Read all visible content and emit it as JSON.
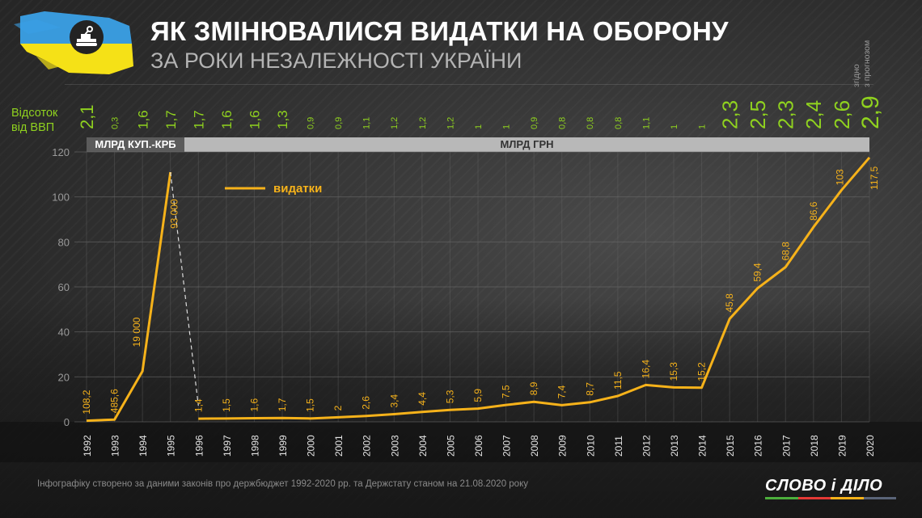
{
  "header": {
    "title": "ЯК ЗМІНЮВАЛИСЯ ВИДАТКИ НА ОБОРОНУ",
    "subtitle": "ЗА РОКИ НЕЗАЛЕЖНОСТІ УКРАЇНИ",
    "logo_icon": "tank-icon"
  },
  "gdp_row": {
    "label_line1": "Відсоток",
    "label_line2": "від ВВП",
    "forecast_note_line1": "згідно",
    "forecast_note_line2": "з прогнозом"
  },
  "unit_bands": [
    {
      "label": "МЛРД КУП.-КРБ",
      "from": "1992",
      "to": "1995"
    },
    {
      "label": "МЛРД ГРН",
      "from": "1996",
      "to": "2020"
    }
  ],
  "legend": {
    "label": "видатки"
  },
  "footnote": "Інфографіку створено за даними законів про держбюджет 1992-2020 рр. та Держстату станом на 21.08.2020 року",
  "brand": {
    "name": "СЛОВО і ДІЛО",
    "stripe_colors": [
      "#4caf3c",
      "#e53935",
      "#f6b21a",
      "#5a6478"
    ]
  },
  "colors": {
    "line": "#f6b21a",
    "gdp_text": "#8fd11f",
    "axis_text": "#9a9a9a",
    "grid": "#6a6a6a",
    "connector": "#dddddd"
  },
  "chart_data": {
    "type": "line",
    "title": "Як змінювалися видатки на оборону за роки незалежності України",
    "xlabel": "",
    "ylabel": "",
    "ylim": [
      0,
      120
    ],
    "yticks": [
      0,
      20,
      40,
      60,
      80,
      100,
      120
    ],
    "grid": true,
    "legend_position": "top-left",
    "categories": [
      "1992",
      "1993",
      "1994",
      "1995",
      "1996",
      "1997",
      "1998",
      "1999",
      "2000",
      "2001",
      "2002",
      "2003",
      "2004",
      "2005",
      "2006",
      "2007",
      "2008",
      "2009",
      "2010",
      "2011",
      "2012",
      "2013",
      "2014",
      "2015",
      "2016",
      "2017",
      "2018",
      "2019",
      "2020"
    ],
    "series": [
      {
        "name": "видатки",
        "note": "1992–1995 in billion karbovanets (МЛРД КУП.-КРБ), plotted on a separate scale; 1996–2020 in billion UAH",
        "labels": [
          "108,2",
          "485,6",
          "19 000",
          "93 000",
          "1,4",
          "1,5",
          "1,6",
          "1,7",
          "1,5",
          "2",
          "2,6",
          "3,4",
          "4,4",
          "5,3",
          "5,9",
          "7,5",
          "8,9",
          "7,4",
          "8,7",
          "11,5",
          "16,4",
          "15,3",
          "15,2",
          "45,8",
          "59,4",
          "68,8",
          "86,6",
          "103",
          "117,5"
        ],
        "values": [
          108.2,
          485.6,
          19000,
          93000,
          1.4,
          1.5,
          1.6,
          1.7,
          1.5,
          2,
          2.6,
          3.4,
          4.4,
          5.3,
          5.9,
          7.5,
          8.9,
          7.4,
          8.7,
          11.5,
          16.4,
          15.3,
          15.2,
          45.8,
          59.4,
          68.8,
          86.6,
          103,
          117.5
        ],
        "plot_y": [
          0.5,
          1.0,
          22.5,
          111,
          1.4,
          1.5,
          1.6,
          1.7,
          1.5,
          2,
          2.6,
          3.4,
          4.4,
          5.3,
          5.9,
          7.5,
          8.9,
          7.4,
          8.7,
          11.5,
          16.4,
          15.3,
          15.2,
          45.8,
          59.4,
          68.8,
          86.6,
          103,
          117.5
        ]
      },
      {
        "name": "Відсоток від ВВП",
        "labels": [
          "2,1",
          "0,3",
          "1,6",
          "1,7",
          "1,7",
          "1,6",
          "1,6",
          "1,3",
          "0,9",
          "0,9",
          "1,1",
          "1,2",
          "1,2",
          "1,2",
          "1",
          "1",
          "0,9",
          "0,8",
          "0,8",
          "0,8",
          "1,1",
          "1",
          "1",
          "2,3",
          "2,5",
          "2,3",
          "2,4",
          "2,6",
          "2,9"
        ],
        "values": [
          2.1,
          0.3,
          1.6,
          1.7,
          1.7,
          1.6,
          1.6,
          1.3,
          0.9,
          0.9,
          1.1,
          1.2,
          1.2,
          1.2,
          1,
          1,
          0.9,
          0.8,
          0.8,
          0.8,
          1.1,
          1,
          1,
          2.3,
          2.5,
          2.3,
          2.4,
          2.6,
          2.9
        ]
      }
    ],
    "annotations": [
      "2020: згідно з прогнозом",
      "dashed connector between 1995 and 1996 (currency change)"
    ]
  }
}
